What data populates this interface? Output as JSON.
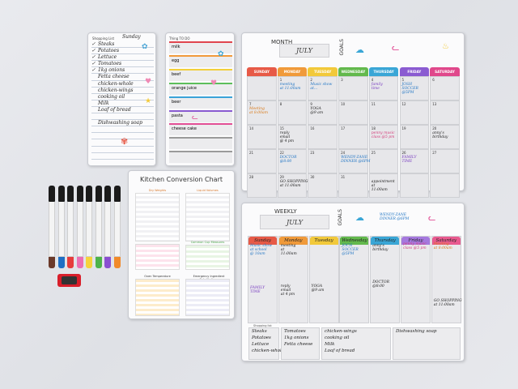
{
  "shopping_list": {
    "title": "Shopping List",
    "day": "Sunday",
    "items": [
      {
        "text": "Steaks",
        "checked": true
      },
      {
        "text": "Potatoes",
        "checked": true
      },
      {
        "text": "Lettuce",
        "checked": true
      },
      {
        "text": "Tomatoes",
        "checked": true
      },
      {
        "text": "1kg onions",
        "checked": true
      },
      {
        "text": "Fetta cheese",
        "checked": false
      },
      {
        "text": "chicken-whole",
        "checked": false
      },
      {
        "text": "chicken-wings",
        "checked": false
      },
      {
        "text": "cooking oil",
        "checked": false
      },
      {
        "text": "Milk",
        "checked": false
      },
      {
        "text": "Loaf of bread",
        "checked": false
      },
      {
        "text": "",
        "checked": false
      },
      {
        "text": "Dishwashing soap",
        "checked": false
      },
      {
        "text": "",
        "checked": false
      },
      {
        "text": "",
        "checked": false
      },
      {
        "text": "",
        "checked": false
      },
      {
        "text": "",
        "checked": false
      },
      {
        "text": "",
        "checked": false
      }
    ]
  },
  "todo": {
    "title": "Thing TO DO",
    "items": [
      "milk",
      "egg",
      "beef",
      "orange juice",
      "beer",
      "pasta",
      "cheese cake",
      "",
      ""
    ],
    "colors": [
      "#e0454e",
      "#f19a3a",
      "#f2cf3a",
      "#5cbf5a",
      "#3aa3d8",
      "#8a5bd1",
      "#e24f95",
      "#9a9a9a",
      "#9a9a9a"
    ]
  },
  "conversion": {
    "title": "Kitchen Conversion Chart",
    "sections": [
      "Dry Weights",
      "Liquid Volumes",
      "Common Cup Measures",
      "Oven Temperature",
      "Emergency Ingredient Substitutions"
    ]
  },
  "marker_colors": [
    "#6b3a2a",
    "#1f6fc4",
    "#e63c3c",
    "#ec6fb3",
    "#f6d33b",
    "#4db34a",
    "#8a4fd1",
    "#f18a2a"
  ],
  "month": {
    "label": "MONTH",
    "name": "JULY",
    "goals": "GOALS",
    "days": [
      "SUNDAY",
      "MONDAY",
      "TUESDAY",
      "WEDNESDAY",
      "THURSDAY",
      "FRIDAY",
      "SATURDAY"
    ],
    "day_colors": [
      "#e75a47",
      "#f09a3a",
      "#f2c93a",
      "#63b94d",
      "#3aa6d6",
      "#8a5bd1",
      "#e0488b"
    ],
    "dates": [
      "",
      "1",
      "2",
      "3",
      "4",
      "5",
      "6",
      "7",
      "8",
      "9",
      "10",
      "11",
      "12",
      "13",
      "14",
      "15",
      "16",
      "17",
      "18",
      "19",
      "20",
      "21",
      "22",
      "23",
      "24",
      "25",
      "26",
      "27",
      "28",
      "29",
      "30",
      "31",
      "",
      "",
      ""
    ],
    "notes": {
      "meeting": "meeting\nat 11:00am",
      "music": "Music show\nat...",
      "family": "family\ntime",
      "josh": "JOSH\nSOCCER\n@5PM",
      "meeting2": "Meeting\nat 8:00am",
      "yoga": "YOGA\n@9 am",
      "reply": "reply\nemail\n@ 4 pm",
      "penny": "penny music\nclass @5 pm",
      "annys": "anny's\nbirthday",
      "doctor": "DOCTOR\n@8:00",
      "wendy": "WENDY-ZANE\nDINNER @6PM",
      "familytime": "FAMILY\nTIME",
      "shopping": "GO SHOPPING\nat 11:00am",
      "appointment": "appointment\nat\n11:00am"
    }
  },
  "week": {
    "label": "WEEKLY",
    "name": "JULY",
    "goals": "GOALS",
    "goal_note": "WENDY-ZANE\nDINNER @6PM",
    "days": [
      "Sunday",
      "Monday",
      "Tuesday",
      "Wednesday",
      "Thursday",
      "Friday",
      "Saturday"
    ],
    "day_colors": [
      "#e75a47",
      "#f09a3a",
      "#f2c93a",
      "#63b94d",
      "#3aa6d6",
      "#a578de",
      "#e95a8f"
    ],
    "notes": {
      "sun": "Music show\nat school\n@ 10am",
      "mon": "meeting\nat\n11:00am",
      "wed": "JOCH\nSOCCER\n@5PM",
      "thu": "anny's\nbirthday",
      "fri": "penny music\nclass @5 pm",
      "sat": "Meeting\nat 8:00am",
      "sun2": "FAMILY\nTIME",
      "mon2": "reply\nemail\nat 4 pm",
      "tue": "YOGA\n@9 am",
      "thu2": "DOCTOR\n@8:00",
      "sat2": "GO SHOPPING\nat 11:00am"
    },
    "shopping_label": "Shopping list",
    "shopping_cols": [
      [
        "Steaks",
        "Potatoes",
        "Lettuce",
        "chicken-whole"
      ],
      [
        "Tomatoes",
        "1kg onions",
        "Fetta cheese"
      ],
      [
        "chicken-wings",
        "cooking oil",
        "Milk",
        "Loaf of bread"
      ],
      [
        "Dishwashing soap"
      ]
    ]
  }
}
